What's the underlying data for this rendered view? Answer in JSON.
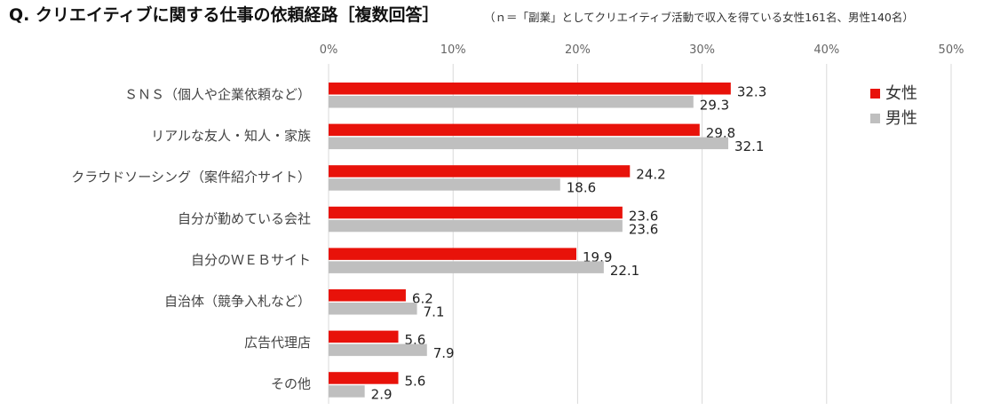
{
  "header": {
    "title": "Q. クリエイティブに関する仕事の依頼経路［複数回答］",
    "note": "（ｎ＝「副業」としてクリエイティブ活動で収入を得ている女性161名、男性140名）"
  },
  "chart_data": {
    "type": "bar",
    "orientation": "horizontal",
    "categories": [
      "ＳＮＳ（個人や企業依頼など）",
      "リアルな友人・知人・家族",
      "クラウドソーシング（案件紹介サイト）",
      "自分が勤めている会社",
      "自分のＷＥＢサイト",
      "自治体（競争入札など）",
      "広告代理店",
      "その他"
    ],
    "series": [
      {
        "name": "女性",
        "color": "#e8120a",
        "values": [
          32.3,
          29.8,
          24.2,
          23.6,
          19.9,
          6.2,
          5.6,
          5.6
        ]
      },
      {
        "name": "男性",
        "color": "#bfbfbf",
        "values": [
          29.3,
          32.1,
          18.6,
          23.6,
          22.1,
          7.1,
          7.9,
          2.9
        ]
      }
    ],
    "xlim": [
      0,
      50
    ],
    "ticks": [
      0,
      10,
      20,
      30,
      40,
      50
    ],
    "tick_labels": [
      "0%",
      "10%",
      "20%",
      "30%",
      "40%",
      "50%"
    ],
    "grid": true,
    "legend_position": "top-right"
  }
}
